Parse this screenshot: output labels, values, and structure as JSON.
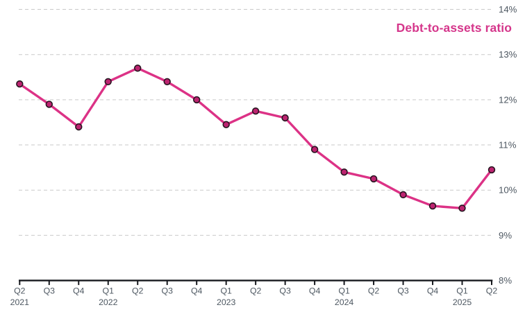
{
  "legend": {
    "label": "Debt-to-assets ratio",
    "color": "#d5368b",
    "position": "top-right"
  },
  "chart_data": {
    "type": "line",
    "title": "",
    "xlabel": "",
    "ylabel": "",
    "categories": [
      "Q2 2021",
      "Q3 2021",
      "Q4 2021",
      "Q1 2022",
      "Q2 2022",
      "Q3 2022",
      "Q4 2022",
      "Q1 2023",
      "Q2 2023",
      "Q3 2023",
      "Q4 2023",
      "Q1 2024",
      "Q2 2024",
      "Q3 2024",
      "Q4 2024",
      "Q1 2025",
      "Q2 2025"
    ],
    "series": [
      {
        "name": "Debt-to-assets ratio",
        "values": [
          12.35,
          11.9,
          11.4,
          12.4,
          12.7,
          12.4,
          12.0,
          11.45,
          11.75,
          11.6,
          10.9,
          10.4,
          10.25,
          9.9,
          9.65,
          9.6,
          10.45
        ],
        "line_color": "#dc3286",
        "marker_fill": "#bc2470",
        "marker_stroke": "#26141f"
      }
    ],
    "x_ticks": [
      {
        "quarter": "Q2",
        "year": "2021"
      },
      {
        "quarter": "Q3"
      },
      {
        "quarter": "Q4"
      },
      {
        "quarter": "Q1",
        "year": "2022"
      },
      {
        "quarter": "Q2"
      },
      {
        "quarter": "Q3"
      },
      {
        "quarter": "Q4"
      },
      {
        "quarter": "Q1",
        "year": "2023"
      },
      {
        "quarter": "Q2"
      },
      {
        "quarter": "Q3"
      },
      {
        "quarter": "Q4"
      },
      {
        "quarter": "Q1",
        "year": "2024"
      },
      {
        "quarter": "Q2"
      },
      {
        "quarter": "Q3"
      },
      {
        "quarter": "Q4"
      },
      {
        "quarter": "Q1",
        "year": "2025"
      },
      {
        "quarter": "Q2"
      }
    ],
    "y_ticks": [
      {
        "label": "14%",
        "value": 14
      },
      {
        "label": "13%",
        "value": 13
      },
      {
        "label": "12%",
        "value": 12
      },
      {
        "label": "11%",
        "value": 11
      },
      {
        "label": "10%",
        "value": 10
      },
      {
        "label": "9%",
        "value": 9
      },
      {
        "label": "8%",
        "value": 8
      }
    ],
    "ylim": [
      8,
      14
    ],
    "y_axis_side": "right",
    "grid": "horizontal-dashed",
    "legend_position": "top-right",
    "gridline_color": "#c9c9c9",
    "axis_color": "#16181d",
    "tick_label_color": "#4d5761"
  }
}
